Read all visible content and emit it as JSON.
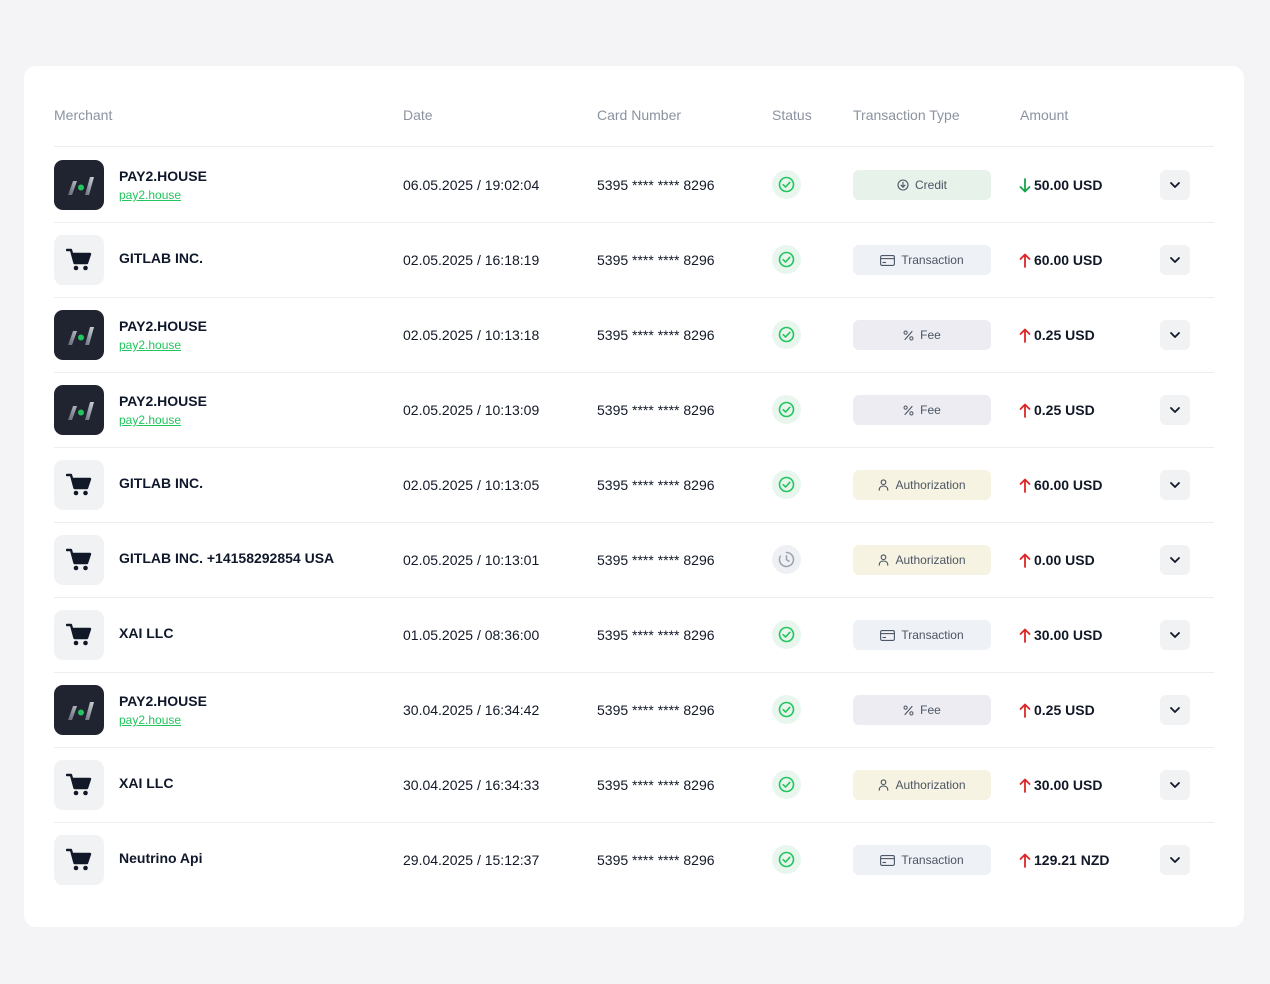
{
  "table": {
    "headers": {
      "merchant": "Merchant",
      "date": "Date",
      "card_number": "Card Number",
      "status": "Status",
      "transaction_type": "Transaction Type",
      "amount": "Amount"
    },
    "rows": [
      {
        "merchant": "PAY2.HOUSE",
        "link": "pay2.house",
        "logo": "pay2house-logo",
        "date": "06.05.2025 / 19:02:04",
        "card": "5395 **** **** 8296",
        "status": "success",
        "type": "Credit",
        "type_icon": "download-circle-icon",
        "direction": "in",
        "amount": "50.00 USD"
      },
      {
        "merchant": "GITLAB INC.",
        "link": "",
        "logo": "shopping-cart-icon",
        "date": "02.05.2025 / 16:18:19",
        "card": "5395 **** **** 8296",
        "status": "success",
        "type": "Transaction",
        "type_icon": "card-icon",
        "direction": "out",
        "amount": "60.00 USD"
      },
      {
        "merchant": "PAY2.HOUSE",
        "link": "pay2.house",
        "logo": "pay2house-logo",
        "date": "02.05.2025 / 10:13:18",
        "card": "5395 **** **** 8296",
        "status": "success",
        "type": "Fee",
        "type_icon": "percent-icon",
        "direction": "out",
        "amount": "0.25 USD"
      },
      {
        "merchant": "PAY2.HOUSE",
        "link": "pay2.house",
        "logo": "pay2house-logo",
        "date": "02.05.2025 / 10:13:09",
        "card": "5395 **** **** 8296",
        "status": "success",
        "type": "Fee",
        "type_icon": "percent-icon",
        "direction": "out",
        "amount": "0.25 USD"
      },
      {
        "merchant": "GITLAB INC.",
        "link": "",
        "logo": "shopping-cart-icon",
        "date": "02.05.2025 / 10:13:05",
        "card": "5395 **** **** 8296",
        "status": "success",
        "type": "Authorization",
        "type_icon": "user-icon",
        "direction": "out",
        "amount": "60.00 USD"
      },
      {
        "merchant": "GITLAB INC. +14158292854 USA",
        "link": "",
        "logo": "shopping-cart-icon",
        "date": "02.05.2025 / 10:13:01",
        "card": "5395 **** **** 8296",
        "status": "pending",
        "type": "Authorization",
        "type_icon": "user-icon",
        "direction": "out",
        "amount": "0.00 USD"
      },
      {
        "merchant": "XAI LLC",
        "link": "",
        "logo": "shopping-cart-icon",
        "date": "01.05.2025 / 08:36:00",
        "card": "5395 **** **** 8296",
        "status": "success",
        "type": "Transaction",
        "type_icon": "card-icon",
        "direction": "out",
        "amount": "30.00 USD"
      },
      {
        "merchant": "PAY2.HOUSE",
        "link": "pay2.house",
        "logo": "pay2house-logo",
        "date": "30.04.2025 / 16:34:42",
        "card": "5395 **** **** 8296",
        "status": "success",
        "type": "Fee",
        "type_icon": "percent-icon",
        "direction": "out",
        "amount": "0.25 USD"
      },
      {
        "merchant": "XAI LLC",
        "link": "",
        "logo": "shopping-cart-icon",
        "date": "30.04.2025 / 16:34:33",
        "card": "5395 **** **** 8296",
        "status": "success",
        "type": "Authorization",
        "type_icon": "user-icon",
        "direction": "out",
        "amount": "30.00 USD"
      },
      {
        "merchant": "Neutrino Api",
        "link": "",
        "logo": "shopping-cart-icon",
        "date": "29.04.2025 / 15:12:37",
        "card": "5395 **** **** 8296",
        "status": "success",
        "type": "Transaction",
        "type_icon": "card-icon",
        "direction": "out",
        "amount": "129.21 NZD"
      }
    ]
  },
  "colors": {
    "success": "#22c55e",
    "incoming_arrow": "#16a34a",
    "outgoing_arrow": "#dc2626",
    "pending": "#9ca3af",
    "logo_dark": "#1f2430"
  }
}
